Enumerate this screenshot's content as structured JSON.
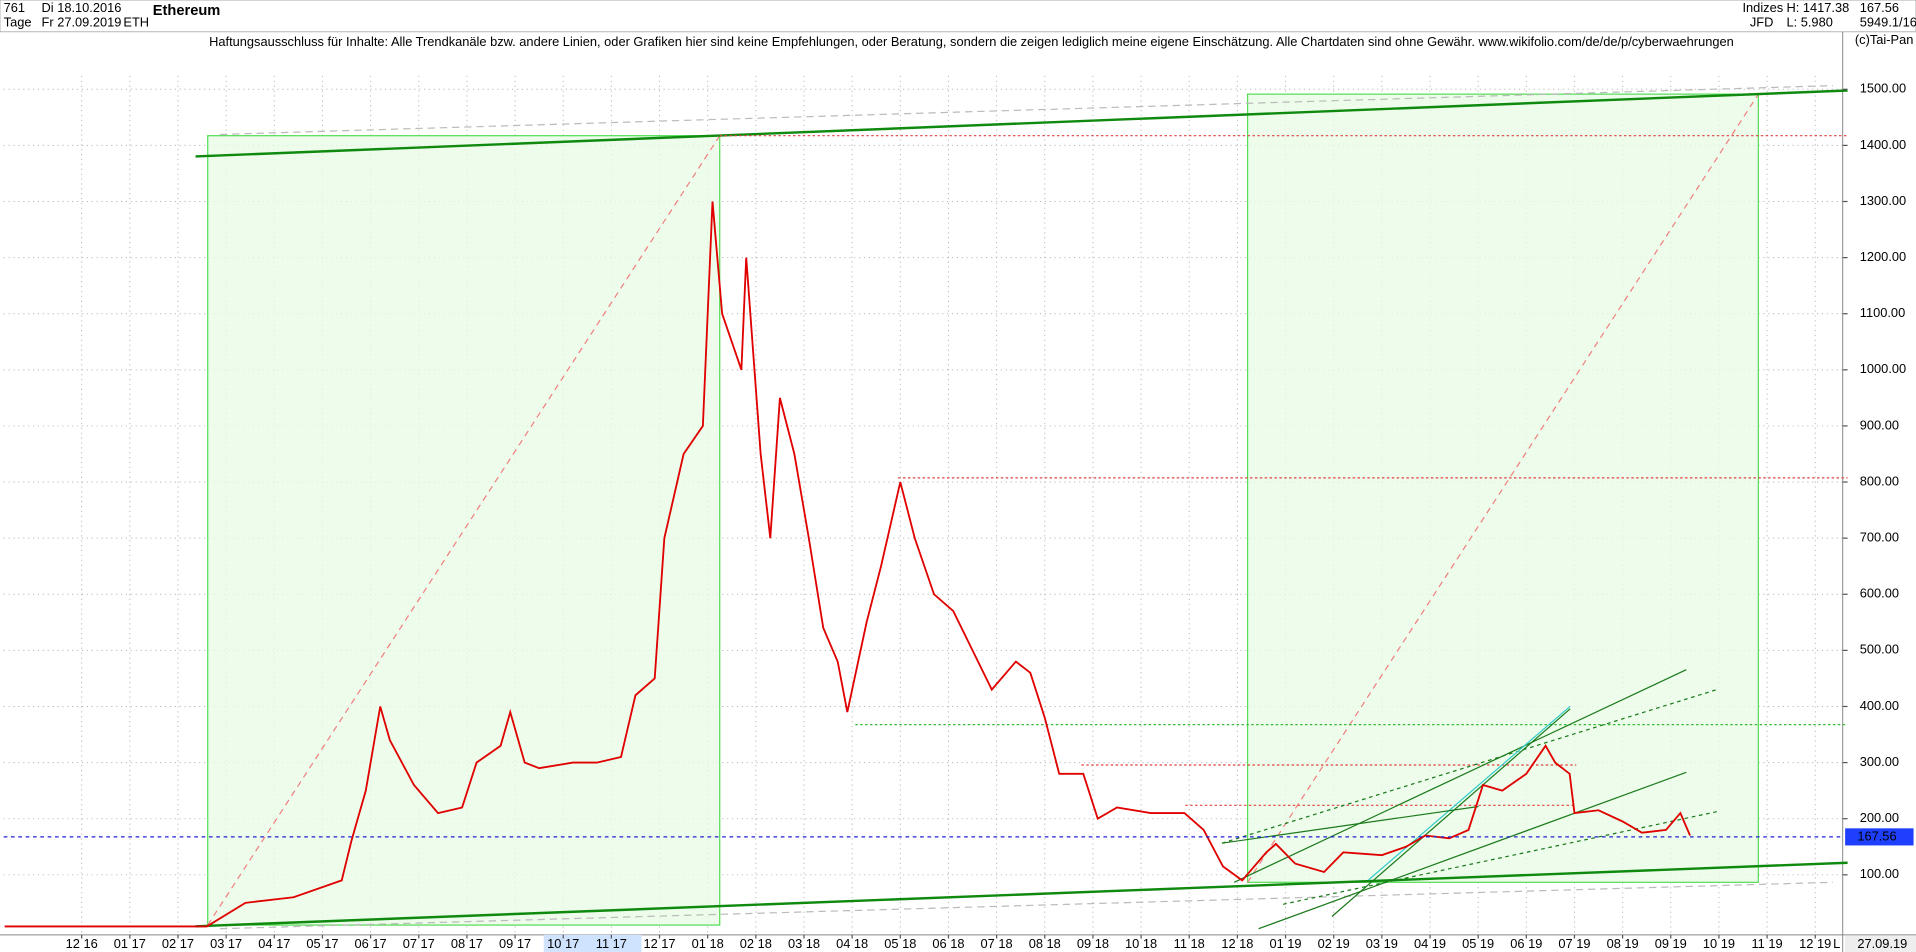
{
  "header": {
    "bars": "761",
    "start_date": "Di 18.10.2016",
    "period": "Tage",
    "end_date": "Fr 27.09.2019",
    "symbol": "ETH",
    "name": "Ethereum",
    "group": "Indizes",
    "high": "H: 1417.38",
    "broker": "JFD",
    "low": "L: 5.980",
    "extra": "5949.1/16",
    "copyright": "(c)Tai-Pan",
    "disclaimer": "Haftungsausschluss für Inhalte: Alle Trendkanäle bzw. andere Linien, oder Grafiken hier sind keine Empfehlungen, oder Beratung, sondern die zeigen lediglich meine eigene Einschätzung. Alle Chartdaten sind ohne Gewähr.  www.wikifolio.com/de/de/p/cyberwaehrungen"
  },
  "chart_data": {
    "type": "line",
    "color": "#e00000",
    "grid": true,
    "x": [
      -1.6,
      2.6,
      3.4,
      4.4,
      5.4,
      5.6,
      5.9,
      6.2,
      6.4,
      6.9,
      7.4,
      7.9,
      8.2,
      8.7,
      8.9,
      9.2,
      9.5,
      10.2,
      10.7,
      11.2,
      11.5,
      11.9,
      12.1,
      12.5,
      12.9,
      13.1,
      13.3,
      13.7,
      13.8,
      14.1,
      14.3,
      14.5,
      14.8,
      15.1,
      15.4,
      15.7,
      15.9,
      16.3,
      16.6,
      17.0,
      17.3,
      17.7,
      18.1,
      18.5,
      18.9,
      19.4,
      19.7,
      20.0,
      20.3,
      20.8,
      21.1,
      21.5,
      22.2,
      22.9,
      23.3,
      23.7,
      24.1,
      24.6,
      24.8,
      25.2,
      25.8,
      26.2,
      27.0,
      27.5,
      27.9,
      28.4,
      28.8,
      29.1,
      29.5,
      30.0,
      30.4,
      30.6,
      30.9,
      31.0,
      31.5,
      32.0,
      32.4,
      32.9,
      33.2,
      33.4
    ],
    "values": [
      8,
      8,
      50,
      60,
      90,
      160,
      250,
      400,
      340,
      260,
      210,
      220,
      300,
      330,
      390,
      300,
      290,
      300,
      300,
      310,
      420,
      450,
      700,
      850,
      900,
      1300,
      1100,
      1000,
      1200,
      850,
      700,
      950,
      850,
      700,
      540,
      480,
      390,
      550,
      650,
      800,
      700,
      600,
      570,
      500,
      430,
      480,
      460,
      380,
      280,
      280,
      200,
      220,
      210,
      210,
      180,
      115,
      90,
      140,
      155,
      120,
      105,
      140,
      135,
      150,
      170,
      165,
      180,
      260,
      250,
      280,
      330,
      300,
      280,
      210,
      215,
      195,
      175,
      180,
      210,
      170
    ],
    "xlim": [
      -1.62,
      36.57
    ],
    "ylim": [
      -7,
      1524
    ],
    "xticks": [
      {
        "value": 0,
        "label": "12 16"
      },
      {
        "value": 1,
        "label": "01 17"
      },
      {
        "value": 2,
        "label": "02 17"
      },
      {
        "value": 3,
        "label": "03 17"
      },
      {
        "value": 4,
        "label": "04 17"
      },
      {
        "value": 5,
        "label": "05 17"
      },
      {
        "value": 6,
        "label": "06 17"
      },
      {
        "value": 7,
        "label": "07 17"
      },
      {
        "value": 8,
        "label": "08 17"
      },
      {
        "value": 9,
        "label": "09 17"
      },
      {
        "value": 10,
        "label": "10 17"
      },
      {
        "value": 11,
        "label": "11 17"
      },
      {
        "value": 12,
        "label": "12 17"
      },
      {
        "value": 13,
        "label": "01 18"
      },
      {
        "value": 14,
        "label": "02 18"
      },
      {
        "value": 15,
        "label": "03 18"
      },
      {
        "value": 16,
        "label": "04 18"
      },
      {
        "value": 17,
        "label": "05 18"
      },
      {
        "value": 18,
        "label": "06 18"
      },
      {
        "value": 19,
        "label": "07 18"
      },
      {
        "value": 20,
        "label": "08 18"
      },
      {
        "value": 21,
        "label": "09 18"
      },
      {
        "value": 22,
        "label": "10 18"
      },
      {
        "value": 23,
        "label": "11 18"
      },
      {
        "value": 24,
        "label": "12 18"
      },
      {
        "value": 25,
        "label": "01 19"
      },
      {
        "value": 26,
        "label": "02 19"
      },
      {
        "value": 27,
        "label": "03 19"
      },
      {
        "value": 28,
        "label": "04 19"
      },
      {
        "value": 29,
        "label": "05 19"
      },
      {
        "value": 30,
        "label": "06 19"
      },
      {
        "value": 31,
        "label": "07 19"
      },
      {
        "value": 32,
        "label": "08 19"
      },
      {
        "value": 33,
        "label": "09 19"
      },
      {
        "value": 34,
        "label": "10 19"
      },
      {
        "value": 35,
        "label": "11 19"
      },
      {
        "value": 36,
        "label": "12 19"
      }
    ],
    "yticks": [
      {
        "value": 100,
        "label": "100.00"
      },
      {
        "value": 200,
        "label": "200.00"
      },
      {
        "value": 300,
        "label": "300.00"
      },
      {
        "value": 400,
        "label": "400.00"
      },
      {
        "value": 500,
        "label": "500.00"
      },
      {
        "value": 600,
        "label": "600.00"
      },
      {
        "value": 700,
        "label": "700.00"
      },
      {
        "value": 800,
        "label": "800.00"
      },
      {
        "value": 900,
        "label": "900.00"
      },
      {
        "value": 1000,
        "label": "1000.00"
      },
      {
        "value": 1100,
        "label": "1100.00"
      },
      {
        "value": 1200,
        "label": "1200.00"
      },
      {
        "value": 1300,
        "label": "1300.00"
      },
      {
        "value": 1400,
        "label": "1400.00"
      },
      {
        "value": 1500,
        "label": "1500.00"
      }
    ],
    "last_value": 167.56,
    "last_date": "27.09.19",
    "scale_mode": "L"
  }
}
